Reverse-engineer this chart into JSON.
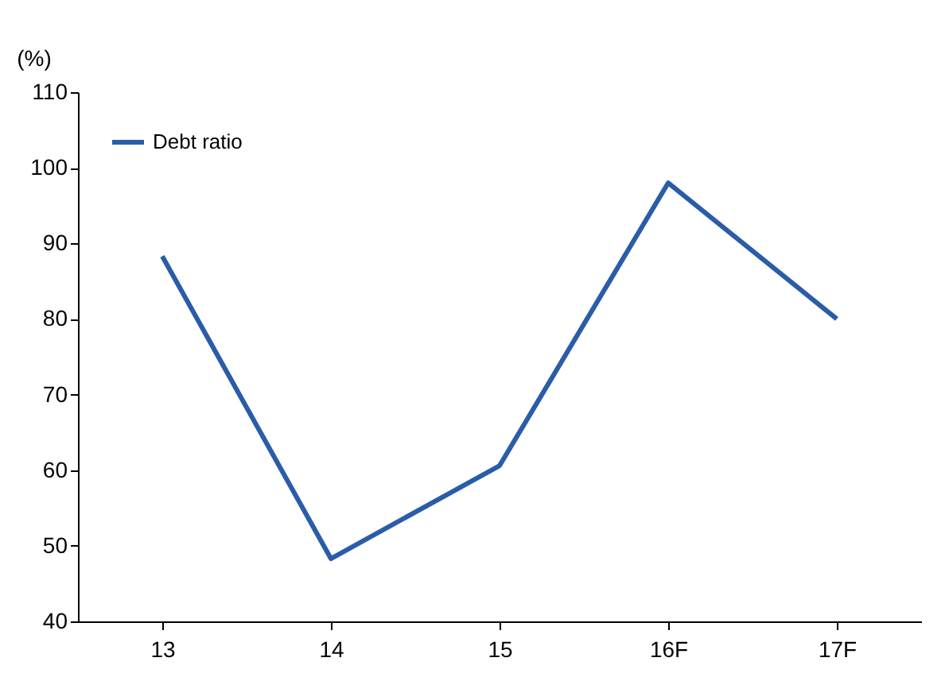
{
  "chart_data": {
    "type": "line",
    "ylabel": "(%)",
    "categories": [
      "13",
      "14",
      "15",
      "16F",
      "17F"
    ],
    "series": [
      {
        "name": "Debt ratio",
        "color": "#2a5ca8",
        "values": [
          88.3,
          48.3,
          60.6,
          98,
          80
        ]
      }
    ],
    "ylim": [
      40,
      110
    ],
    "yticks": [
      40,
      50,
      60,
      70,
      80,
      90,
      100,
      110
    ],
    "grid": false,
    "legend": "top left",
    "marker": "none",
    "line_style": "solid"
  }
}
